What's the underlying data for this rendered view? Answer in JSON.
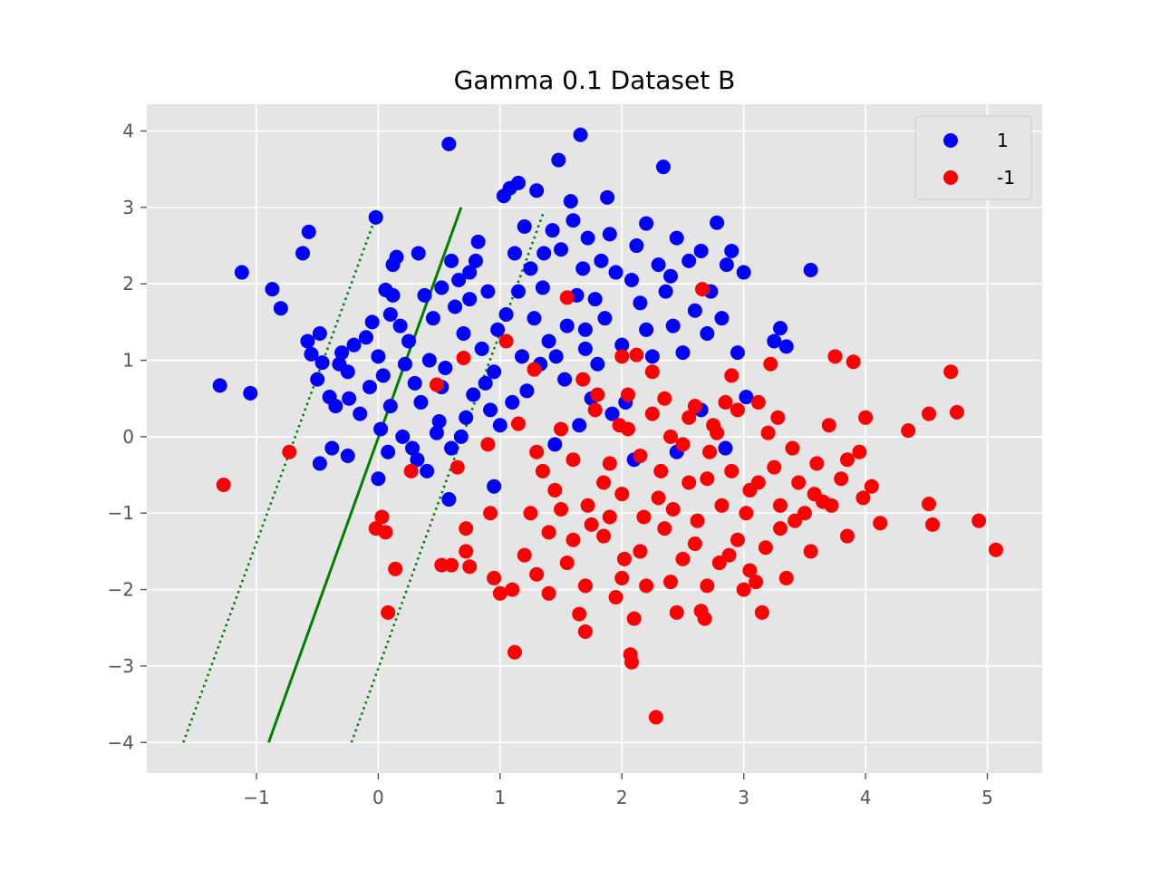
{
  "chart_data": {
    "type": "scatter",
    "title": "Gamma 0.1 Dataset B",
    "xlabel": "",
    "ylabel": "",
    "xlim": [
      -1.9,
      5.45
    ],
    "ylim": [
      -4.4,
      4.35
    ],
    "xticks": [
      -1,
      0,
      1,
      2,
      3,
      4,
      5
    ],
    "yticks": [
      -4,
      -3,
      -2,
      -1,
      0,
      1,
      2,
      3,
      4
    ],
    "xtick_labels": [
      "−1",
      "0",
      "1",
      "2",
      "3",
      "4",
      "5"
    ],
    "ytick_labels": [
      "−4",
      "−3",
      "−2",
      "−1",
      "0",
      "1",
      "2",
      "3",
      "4"
    ],
    "grid": true,
    "background": "#e5e5e5",
    "grid_color": "#ffffff",
    "legend": {
      "placement": "top-right",
      "entries": [
        "1",
        "-1"
      ]
    },
    "series": [
      {
        "name": "1",
        "color": "#0000ff",
        "points": [
          [
            -1.3,
            0.67
          ],
          [
            -1.05,
            0.57
          ],
          [
            -1.12,
            2.15
          ],
          [
            -0.87,
            1.93
          ],
          [
            -0.8,
            1.68
          ],
          [
            -0.62,
            2.4
          ],
          [
            -0.57,
            2.68
          ],
          [
            -0.58,
            1.25
          ],
          [
            -0.55,
            1.08
          ],
          [
            -0.48,
            1.35
          ],
          [
            -0.5,
            0.75
          ],
          [
            -0.46,
            0.97
          ],
          [
            -0.4,
            0.52
          ],
          [
            -0.35,
            0.4
          ],
          [
            -0.3,
            1.1
          ],
          [
            -0.25,
            0.85
          ],
          [
            -0.2,
            1.2
          ],
          [
            -0.24,
            0.5
          ],
          [
            -0.1,
            1.3
          ],
          [
            -0.05,
            1.5
          ],
          [
            -0.02,
            2.87
          ],
          [
            0.0,
            1.05
          ],
          [
            0.04,
            0.8
          ],
          [
            0.06,
            1.92
          ],
          [
            0.1,
            1.6
          ],
          [
            0.12,
            2.25
          ],
          [
            0.15,
            2.35
          ],
          [
            0.18,
            1.45
          ],
          [
            0.22,
            0.95
          ],
          [
            0.25,
            1.25
          ],
          [
            0.3,
            0.7
          ],
          [
            0.33,
            2.4
          ],
          [
            0.35,
            0.45
          ],
          [
            0.38,
            1.85
          ],
          [
            0.42,
            1.0
          ],
          [
            0.45,
            1.55
          ],
          [
            0.5,
            0.2
          ],
          [
            0.52,
            1.95
          ],
          [
            0.55,
            0.9
          ],
          [
            0.58,
            3.83
          ],
          [
            0.6,
            2.3
          ],
          [
            0.63,
            1.7
          ],
          [
            0.66,
            2.05
          ],
          [
            0.7,
            1.35
          ],
          [
            0.72,
            0.25
          ],
          [
            0.75,
            1.8
          ],
          [
            0.78,
            0.55
          ],
          [
            0.8,
            2.3
          ],
          [
            0.82,
            2.55
          ],
          [
            0.85,
            1.15
          ],
          [
            0.88,
            0.7
          ],
          [
            0.9,
            1.9
          ],
          [
            0.92,
            0.35
          ],
          [
            0.95,
            0.85
          ],
          [
            0.98,
            1.4
          ],
          [
            1.0,
            0.15
          ],
          [
            1.03,
            3.15
          ],
          [
            1.05,
            1.6
          ],
          [
            1.08,
            3.25
          ],
          [
            1.1,
            0.45
          ],
          [
            1.12,
            2.4
          ],
          [
            1.15,
            3.32
          ],
          [
            1.18,
            1.05
          ],
          [
            1.2,
            2.75
          ],
          [
            1.22,
            0.6
          ],
          [
            1.25,
            2.2
          ],
          [
            1.28,
            1.55
          ],
          [
            1.3,
            3.22
          ],
          [
            1.33,
            0.95
          ],
          [
            1.36,
            2.4
          ],
          [
            1.4,
            1.25
          ],
          [
            1.43,
            2.7
          ],
          [
            1.46,
            1.05
          ],
          [
            1.48,
            3.62
          ],
          [
            1.5,
            2.45
          ],
          [
            1.53,
            0.75
          ],
          [
            1.55,
            1.45
          ],
          [
            1.58,
            3.08
          ],
          [
            1.6,
            2.83
          ],
          [
            1.63,
            1.85
          ],
          [
            1.66,
            3.95
          ],
          [
            1.68,
            2.2
          ],
          [
            1.7,
            1.4
          ],
          [
            1.72,
            2.6
          ],
          [
            1.75,
            0.5
          ],
          [
            1.78,
            1.8
          ],
          [
            1.8,
            0.95
          ],
          [
            1.83,
            2.3
          ],
          [
            1.86,
            1.55
          ],
          [
            1.88,
            3.13
          ],
          [
            1.9,
            2.65
          ],
          [
            1.92,
            0.3
          ],
          [
            1.95,
            2.15
          ],
          [
            2.0,
            1.2
          ],
          [
            2.03,
            0.45
          ],
          [
            2.08,
            2.05
          ],
          [
            2.12,
            2.5
          ],
          [
            2.15,
            1.75
          ],
          [
            2.2,
            2.79
          ],
          [
            2.25,
            1.05
          ],
          [
            2.3,
            2.25
          ],
          [
            2.34,
            3.53
          ],
          [
            2.36,
            1.9
          ],
          [
            2.4,
            2.1
          ],
          [
            2.42,
            1.45
          ],
          [
            2.45,
            2.6
          ],
          [
            2.5,
            1.1
          ],
          [
            2.55,
            2.3
          ],
          [
            2.6,
            1.65
          ],
          [
            2.65,
            2.43
          ],
          [
            2.7,
            1.35
          ],
          [
            2.73,
            1.9
          ],
          [
            2.78,
            2.8
          ],
          [
            2.82,
            1.55
          ],
          [
            2.86,
            2.25
          ],
          [
            2.9,
            2.43
          ],
          [
            2.95,
            1.1
          ],
          [
            3.0,
            2.15
          ],
          [
            3.02,
            0.52
          ],
          [
            3.25,
            1.25
          ],
          [
            3.3,
            1.42
          ],
          [
            3.35,
            1.18
          ],
          [
            3.55,
            2.18
          ],
          [
            -0.15,
            0.3
          ],
          [
            -0.07,
            0.65
          ],
          [
            0.02,
            0.1
          ],
          [
            0.08,
            -0.2
          ],
          [
            0.1,
            0.4
          ],
          [
            0.2,
            0.0
          ],
          [
            0.28,
            -0.15
          ],
          [
            0.32,
            -0.3
          ],
          [
            0.4,
            -0.45
          ],
          [
            0.48,
            0.05
          ],
          [
            0.6,
            -0.15
          ],
          [
            0.68,
            0.0
          ],
          [
            -0.38,
            -0.15
          ],
          [
            -0.25,
            -0.25
          ],
          [
            -0.48,
            -0.35
          ],
          [
            0.58,
            -0.82
          ],
          [
            0.95,
            -0.65
          ],
          [
            1.45,
            -0.1
          ],
          [
            1.65,
            0.15
          ],
          [
            2.1,
            -0.3
          ],
          [
            2.45,
            -0.2
          ],
          [
            2.85,
            -0.15
          ],
          [
            0.12,
            1.85
          ],
          [
            0.75,
            2.15
          ],
          [
            1.35,
            1.95
          ],
          [
            1.7,
            1.15
          ],
          [
            2.65,
            0.35
          ],
          [
            -0.32,
            0.95
          ],
          [
            0.0,
            -0.55
          ],
          [
            0.52,
            0.65
          ],
          [
            1.15,
            1.9
          ],
          [
            2.2,
            1.4
          ]
        ]
      },
      {
        "name": "-1",
        "color": "#ff0000",
        "points": [
          [
            -1.27,
            -0.63
          ],
          [
            -0.73,
            -0.2
          ],
          [
            -0.02,
            -1.2
          ],
          [
            0.03,
            -1.05
          ],
          [
            0.06,
            -1.25
          ],
          [
            0.08,
            -2.3
          ],
          [
            0.14,
            -1.73
          ],
          [
            0.27,
            -0.45
          ],
          [
            0.48,
            0.68
          ],
          [
            0.52,
            -1.68
          ],
          [
            0.6,
            -1.68
          ],
          [
            0.65,
            -0.4
          ],
          [
            0.7,
            1.03
          ],
          [
            0.72,
            -1.2
          ],
          [
            0.72,
            -1.5
          ],
          [
            0.75,
            -1.7
          ],
          [
            0.9,
            -0.1
          ],
          [
            0.92,
            -1.0
          ],
          [
            0.95,
            -1.85
          ],
          [
            1.0,
            -2.05
          ],
          [
            1.05,
            1.25
          ],
          [
            1.1,
            -2.0
          ],
          [
            1.12,
            -2.82
          ],
          [
            1.15,
            0.17
          ],
          [
            1.2,
            -1.55
          ],
          [
            1.28,
            0.88
          ],
          [
            1.3,
            -1.8
          ],
          [
            1.4,
            -2.05
          ],
          [
            1.5,
            -0.95
          ],
          [
            1.55,
            1.82
          ],
          [
            1.6,
            -1.35
          ],
          [
            1.65,
            -2.32
          ],
          [
            1.68,
            0.75
          ],
          [
            1.7,
            -2.55
          ],
          [
            1.75,
            -1.15
          ],
          [
            1.8,
            0.55
          ],
          [
            1.85,
            -0.6
          ],
          [
            1.9,
            -1.05
          ],
          [
            1.95,
            -2.1
          ],
          [
            1.98,
            0.15
          ],
          [
            2.0,
            1.05
          ],
          [
            2.02,
            -1.6
          ],
          [
            2.05,
            0.55
          ],
          [
            2.07,
            -2.85
          ],
          [
            2.08,
            -2.95
          ],
          [
            2.1,
            -2.38
          ],
          [
            2.12,
            1.07
          ],
          [
            2.15,
            -0.25
          ],
          [
            2.2,
            -1.95
          ],
          [
            2.25,
            0.85
          ],
          [
            2.28,
            -3.67
          ],
          [
            2.3,
            -0.8
          ],
          [
            2.35,
            0.5
          ],
          [
            2.4,
            -1.9
          ],
          [
            2.45,
            -2.3
          ],
          [
            2.5,
            -0.1
          ],
          [
            2.55,
            0.25
          ],
          [
            2.6,
            -1.4
          ],
          [
            2.65,
            -2.28
          ],
          [
            2.66,
            1.93
          ],
          [
            2.68,
            -2.38
          ],
          [
            2.7,
            -0.55
          ],
          [
            2.75,
            0.15
          ],
          [
            2.8,
            -1.65
          ],
          [
            2.85,
            0.45
          ],
          [
            2.9,
            0.8
          ],
          [
            2.95,
            -1.35
          ],
          [
            3.0,
            -2.0
          ],
          [
            3.05,
            -0.7
          ],
          [
            3.1,
            -1.9
          ],
          [
            3.15,
            -2.3
          ],
          [
            3.2,
            0.05
          ],
          [
            3.22,
            0.95
          ],
          [
            3.25,
            -0.4
          ],
          [
            3.28,
            0.25
          ],
          [
            3.3,
            -1.2
          ],
          [
            3.35,
            -1.85
          ],
          [
            3.4,
            -0.15
          ],
          [
            3.45,
            -0.6
          ],
          [
            3.5,
            -1.0
          ],
          [
            3.55,
            -1.5
          ],
          [
            3.6,
            -0.35
          ],
          [
            3.65,
            -0.85
          ],
          [
            3.7,
            0.15
          ],
          [
            3.75,
            1.05
          ],
          [
            3.8,
            -0.55
          ],
          [
            3.85,
            -1.3
          ],
          [
            3.9,
            0.98
          ],
          [
            3.95,
            -0.2
          ],
          [
            4.0,
            0.25
          ],
          [
            4.05,
            -0.65
          ],
          [
            4.12,
            -1.13
          ],
          [
            4.35,
            0.08
          ],
          [
            4.52,
            -0.88
          ],
          [
            4.55,
            -1.15
          ],
          [
            4.52,
            0.3
          ],
          [
            4.7,
            0.85
          ],
          [
            4.75,
            0.32
          ],
          [
            4.93,
            -1.1
          ],
          [
            5.07,
            -1.48
          ],
          [
            1.35,
            -0.45
          ],
          [
            1.45,
            -0.7
          ],
          [
            1.6,
            -0.3
          ],
          [
            1.72,
            -0.9
          ],
          [
            1.9,
            -0.35
          ],
          [
            2.0,
            -0.75
          ],
          [
            2.18,
            -1.05
          ],
          [
            2.32,
            -0.45
          ],
          [
            2.42,
            -0.95
          ],
          [
            2.55,
            -0.6
          ],
          [
            2.62,
            -1.1
          ],
          [
            2.72,
            -0.2
          ],
          [
            2.82,
            -0.9
          ],
          [
            2.9,
            -0.45
          ],
          [
            3.02,
            -1.0
          ],
          [
            3.12,
            -0.6
          ],
          [
            3.18,
            -1.45
          ],
          [
            3.3,
            -0.9
          ],
          [
            3.42,
            -1.1
          ],
          [
            3.58,
            -0.75
          ],
          [
            3.72,
            -0.9
          ],
          [
            3.85,
            -0.3
          ],
          [
            3.98,
            -0.8
          ],
          [
            1.25,
            -1.0
          ],
          [
            1.4,
            -1.25
          ],
          [
            1.55,
            -1.65
          ],
          [
            1.7,
            -1.95
          ],
          [
            1.85,
            -1.3
          ],
          [
            2.0,
            -1.85
          ],
          [
            2.15,
            -1.5
          ],
          [
            2.35,
            -1.2
          ],
          [
            2.5,
            -1.6
          ],
          [
            2.7,
            -1.95
          ],
          [
            2.88,
            -1.55
          ],
          [
            3.05,
            -1.75
          ],
          [
            1.3,
            -0.2
          ],
          [
            1.5,
            0.1
          ],
          [
            1.78,
            0.35
          ],
          [
            2.05,
            0.1
          ],
          [
            2.25,
            0.3
          ],
          [
            2.4,
            0.0
          ],
          [
            2.6,
            0.4
          ],
          [
            2.78,
            0.05
          ],
          [
            2.95,
            0.35
          ],
          [
            3.12,
            0.45
          ]
        ]
      }
    ],
    "lines": [
      {
        "name": "decision-boundary",
        "style": "solid",
        "color": "#008000",
        "x": [
          -0.9,
          0.68
        ],
        "y": [
          -4.0,
          3.0
        ]
      },
      {
        "name": "margin-left",
        "style": "dotted",
        "color": "#008000",
        "x": [
          -1.6,
          -0.02
        ],
        "y": [
          -4.0,
          2.88
        ]
      },
      {
        "name": "margin-right",
        "style": "dotted",
        "color": "#008000",
        "x": [
          -0.22,
          1.36
        ],
        "y": [
          -4.0,
          2.95
        ]
      }
    ]
  }
}
